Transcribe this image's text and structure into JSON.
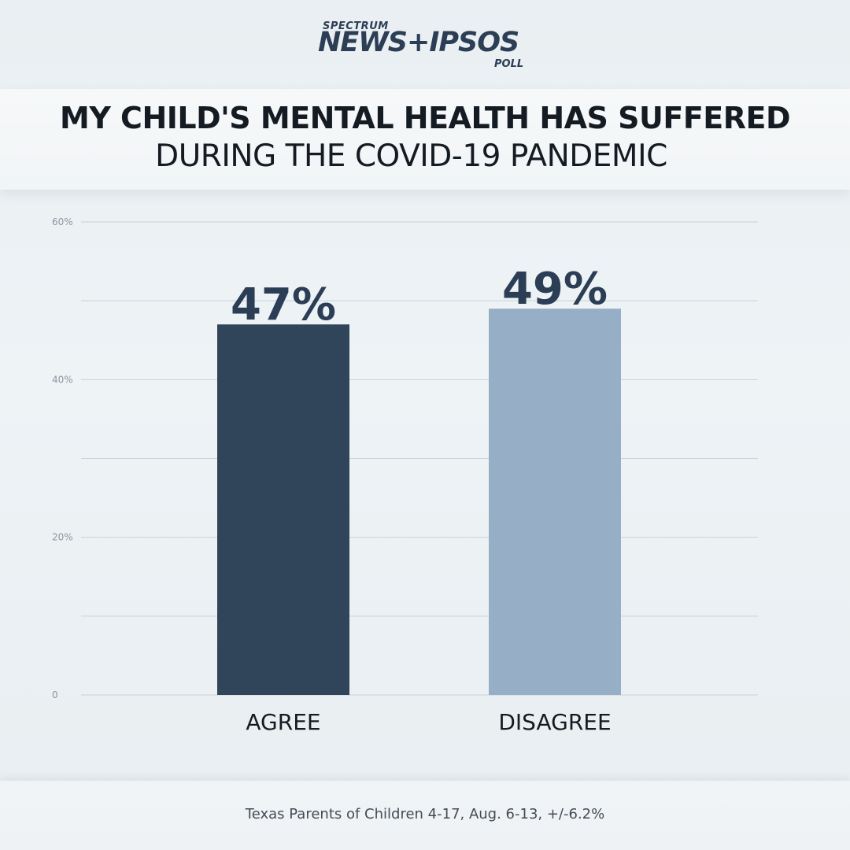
{
  "brand": {
    "top": "SPECTRUM",
    "main": "NEWS+IPSOS",
    "bottom": "POLL"
  },
  "title": {
    "line1": "MY CHILD'S MENTAL HEALTH HAS SUFFERED",
    "line2": "DURING THE COVID-19 PANDEMIC"
  },
  "footer": {
    "note": "Texas Parents of Children 4-17, Aug. 6-13, +/-6.2%"
  },
  "colors": {
    "agree": "#304559",
    "disagree": "#97aec7",
    "text": "#2c3e55",
    "grid": "#c9d2d8",
    "tick": "#8a969f"
  },
  "chart_data": {
    "type": "bar",
    "title": "MY CHILD'S MENTAL HEALTH HAS SUFFERED DURING THE COVID-19 PANDEMIC",
    "categories": [
      "AGREE",
      "DISAGREE"
    ],
    "values": [
      47,
      49
    ],
    "data_labels": [
      "47%",
      "49%"
    ],
    "ylim": [
      0,
      60
    ],
    "y_ticks": [
      {
        "value": 0,
        "label": "0"
      },
      {
        "value": 20,
        "label": "20%"
      },
      {
        "value": 40,
        "label": "40%"
      },
      {
        "value": 60,
        "label": "60%"
      }
    ],
    "gridlines": [
      0,
      10,
      20,
      30,
      40,
      50,
      60
    ],
    "grid": true,
    "legend": "none"
  }
}
